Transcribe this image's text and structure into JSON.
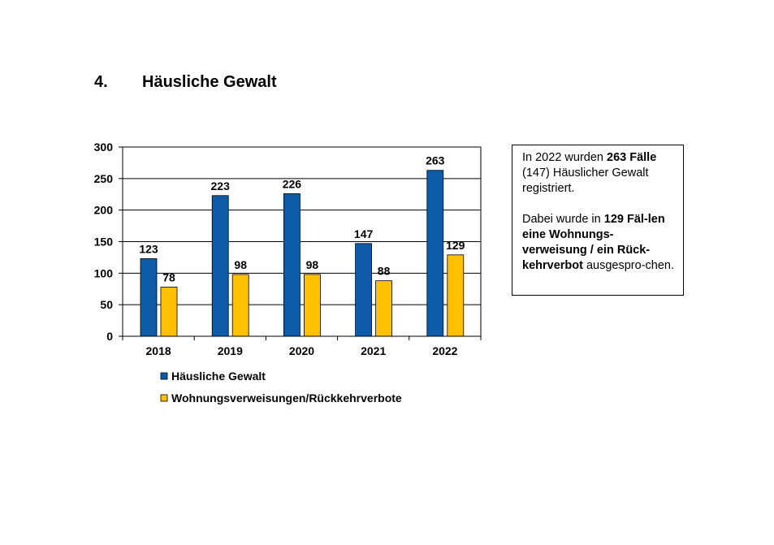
{
  "heading": {
    "number": "4.",
    "title": "Häusliche Gewalt"
  },
  "chart_data": {
    "type": "bar",
    "categories": [
      "2018",
      "2019",
      "2020",
      "2021",
      "2022"
    ],
    "series": [
      {
        "name": "Häusliche Gewalt",
        "values": [
          123,
          223,
          226,
          147,
          263
        ],
        "color": "#0E5BA8"
      },
      {
        "name": "Wohnungsverweisungen/Rückkehrverbote",
        "values": [
          78,
          98,
          98,
          88,
          129
        ],
        "color": "#FFC000"
      }
    ],
    "ylim": [
      0,
      300
    ],
    "yticks": [
      0,
      50,
      100,
      150,
      200,
      250,
      300
    ],
    "grid": true,
    "data_labels": true,
    "legend": "bottom-left"
  },
  "info_box": {
    "p1": [
      {
        "text": "In 2022 wurden ",
        "bold": false
      },
      {
        "text": "263 Fälle",
        "bold": true
      },
      {
        "text": " (147) Häuslicher Gewalt registriert.",
        "bold": false
      }
    ],
    "p2": [
      {
        "text": "Dabei wurde in ",
        "bold": false
      },
      {
        "text": "129 Fäl-len eine Wohnungs-verweisung / ein Rück-kehrverbot",
        "bold": true
      },
      {
        "text": " ausgespro-chen.",
        "bold": false
      }
    ]
  }
}
